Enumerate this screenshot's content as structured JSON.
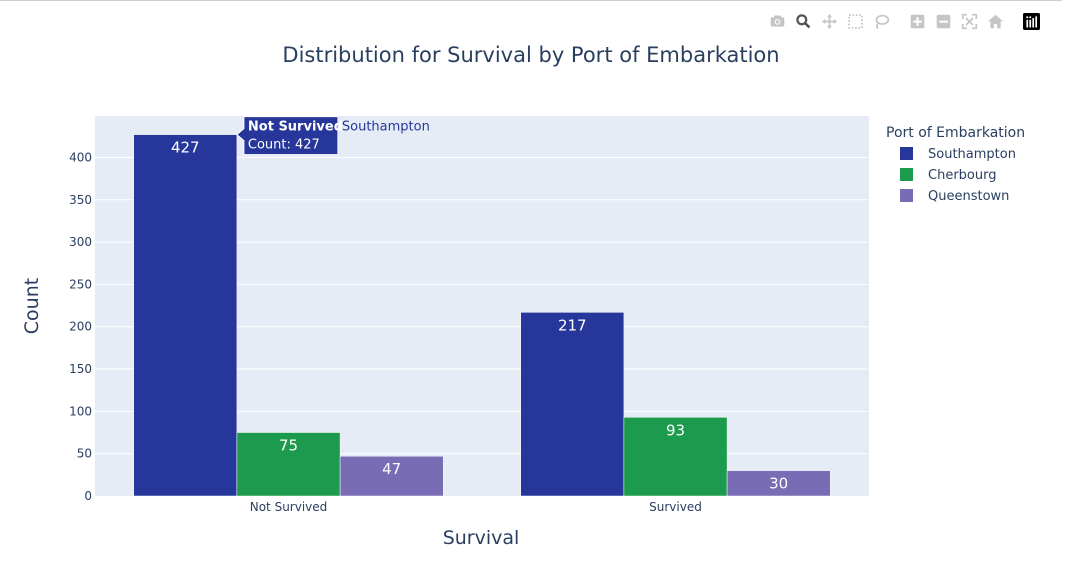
{
  "modebar": {
    "buttons": [
      {
        "name": "camera-icon",
        "active": false
      },
      {
        "name": "zoom-icon",
        "active": true
      },
      {
        "name": "pan-icon",
        "active": false
      },
      {
        "name": "box-select-icon",
        "active": false
      },
      {
        "name": "lasso-select-icon",
        "active": false
      },
      {
        "name": "zoom-in-icon",
        "active": false
      },
      {
        "name": "zoom-out-icon",
        "active": false
      },
      {
        "name": "autoscale-icon",
        "active": false
      },
      {
        "name": "reset-axes-icon",
        "active": false
      },
      {
        "name": "plotly-logo-icon",
        "active": false
      }
    ],
    "colors": {
      "inactive": "#c5c5c5",
      "active": "#555555"
    }
  },
  "chart_data": {
    "type": "bar",
    "title": "Distribution for Survival by Port of Embarkation",
    "xlabel": "Survival",
    "ylabel": "Count",
    "categories": [
      "Not Survived",
      "Survived"
    ],
    "series": [
      {
        "name": "Southampton",
        "values": [
          427,
          217
        ],
        "color": "#26369a"
      },
      {
        "name": "Cherbourg",
        "values": [
          75,
          93
        ],
        "color": "#1c9a4d"
      },
      {
        "name": "Queenstown",
        "values": [
          47,
          30
        ],
        "color": "#786cb4"
      }
    ],
    "ylim": [
      0,
      449
    ],
    "yticks": [
      0,
      50,
      100,
      150,
      200,
      250,
      300,
      350,
      400
    ],
    "grid": true,
    "legend": {
      "title": "Port of Embarkation",
      "placement": "right"
    },
    "background": "#e5ecf6",
    "tooltip": {
      "bold_label": "Not Survived",
      "series_label": "Southampton",
      "detail": "Count: 427"
    }
  }
}
